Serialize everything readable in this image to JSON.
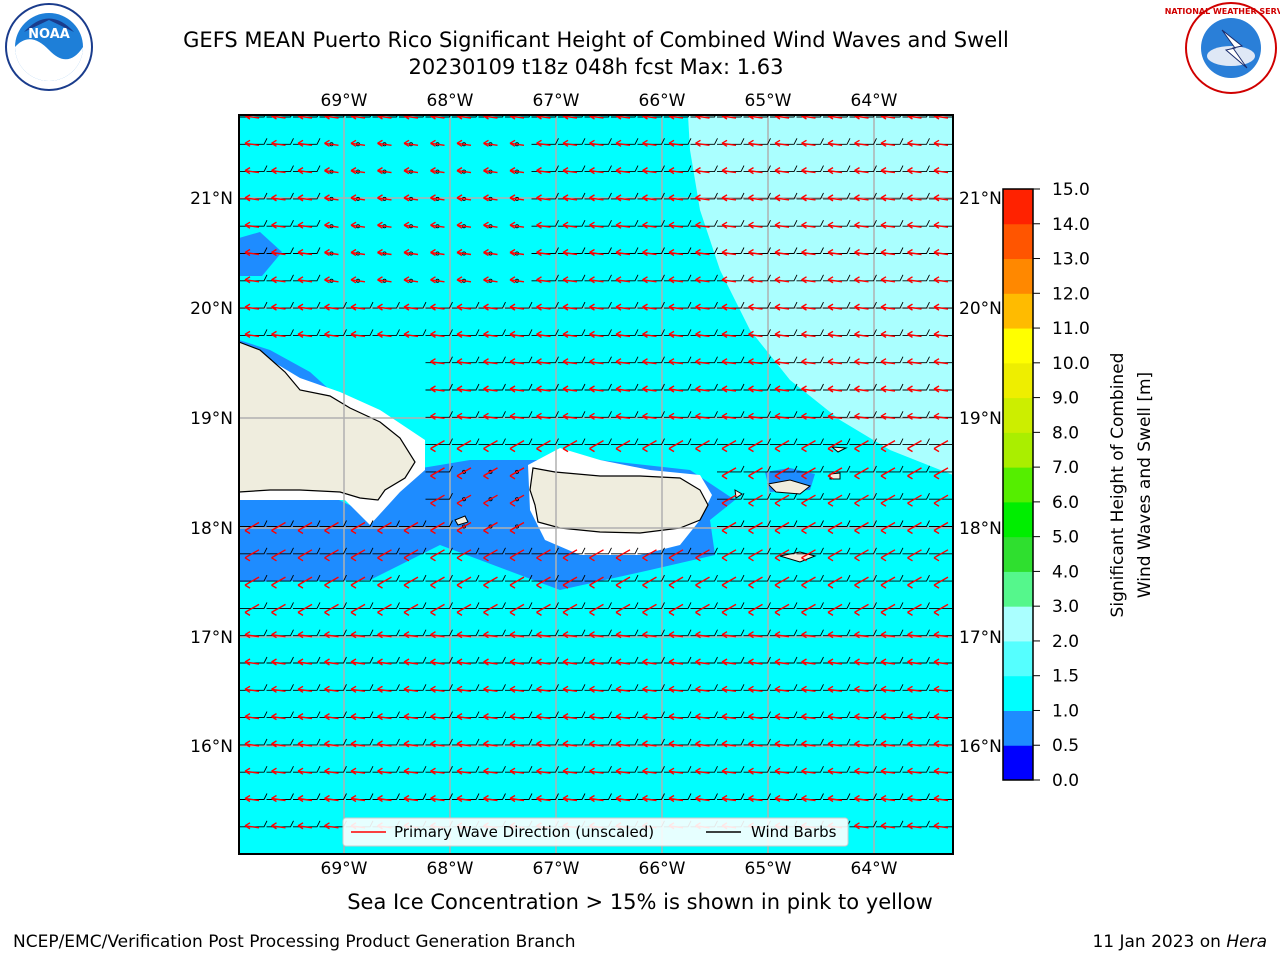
{
  "title": {
    "line1": "GEFS MEAN Puerto Rico Significant Height of Combined Wind Waves and Swell",
    "line2": "20230109 t18z 048h fcst   Max: 1.63"
  },
  "logos": {
    "left": "noara-logo",
    "left_text": "NOAA",
    "right": "nws-logo",
    "right_text": "NATIONAL WEATHER SERVICE"
  },
  "map": {
    "lon_labels": [
      "69°W",
      "68°W",
      "67°W",
      "66°W",
      "65°W",
      "64°W"
    ],
    "lat_labels": [
      "21°N",
      "20°N",
      "19°N",
      "18°N",
      "17°N",
      "16°N"
    ],
    "legend": {
      "wave_direction": "Primary Wave Direction (unscaled)",
      "wind_barbs": "Wind Barbs"
    },
    "colors": {
      "ocean_main": "#00ffff",
      "ocean_high": "#aaffff",
      "ocean_low": "#1e8cff",
      "land": "#efedde",
      "wave_arrow": "#ff0000",
      "barb": "#000000"
    }
  },
  "colorbar": {
    "ticks": [
      "15.0",
      "14.0",
      "13.0",
      "12.0",
      "11.0",
      "10.0",
      "9.0",
      "8.0",
      "7.0",
      "6.0",
      "5.0",
      "4.0",
      "3.0",
      "2.0",
      "1.5",
      "1.0",
      "0.5",
      "0.0"
    ],
    "colors": [
      "#0000ff",
      "#1e8cff",
      "#00ffff",
      "#55ffff",
      "#aaffff",
      "#55f78c",
      "#2fdf2f",
      "#00ee00",
      "#55ee00",
      "#aaee00",
      "#ccee00",
      "#eeee00",
      "#ffff00",
      "#ffbb00",
      "#ff8800",
      "#ff5500",
      "#ff2200"
    ],
    "label_line1": "Significant Height of Combined",
    "label_line2": "Wind Waves and Swell [m]"
  },
  "caption": "Sea Ice Concentration > 15% is shown in pink to yellow",
  "footer": {
    "left": "NCEP/EMC/Verification Post Processing Product Generation Branch",
    "right_date": "11 Jan 2023 on ",
    "right_host": "Hera"
  }
}
